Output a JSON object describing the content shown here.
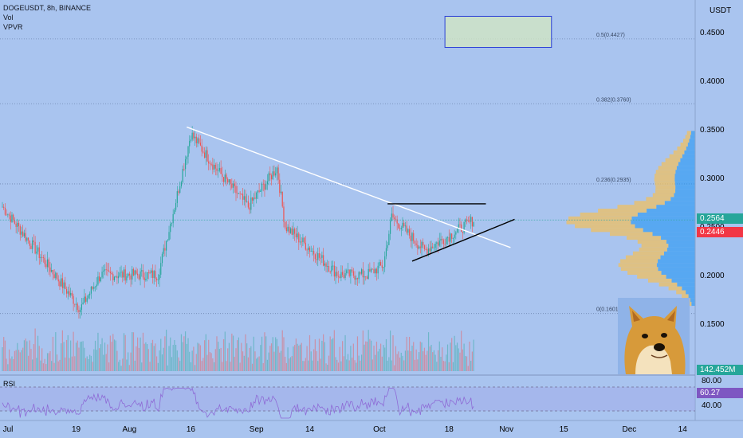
{
  "header": {
    "symbol_line": "DOGEUSDT, 8h, BINANCE",
    "indicators": [
      "Vol",
      "VPVR"
    ]
  },
  "price_axis": {
    "currency": "USDT",
    "ticks": [
      "0.4500",
      "0.4000",
      "0.3500",
      "0.3000",
      "0.2500",
      "0.2000",
      "0.1500"
    ],
    "tick_values": [
      0.45,
      0.4,
      0.35,
      0.3,
      0.25,
      0.2,
      0.15
    ],
    "current_price": "0.2564",
    "alt_price": "0.2446",
    "volume_label": "142.452M"
  },
  "time_axis": {
    "labels": [
      "Jul",
      "19",
      "Aug",
      "16",
      "Sep",
      "14",
      "Oct",
      "18",
      "Nov",
      "15",
      "Dec",
      "14"
    ]
  },
  "fib_levels": [
    {
      "label": "0.5(0.4427)",
      "value": 0.4427
    },
    {
      "label": "0.382(0.3760)",
      "value": 0.376
    },
    {
      "label": "0.236(0.2935)",
      "value": 0.2935
    },
    {
      "label": "0(0.1601)",
      "value": 0.1601
    }
  ],
  "rsi": {
    "label": "RSI",
    "ticks": [
      "80.00",
      "40.00"
    ],
    "value": "60.27"
  },
  "colors": {
    "background": "#a9c4ef",
    "up": "#26a69a",
    "down": "#ef5350",
    "current_price_box": "#26a69a",
    "alt_price_box": "#f23645",
    "volume_box": "#26a69a",
    "rsi_box": "#7e57c2",
    "trendline": "#ffffff",
    "triangle": "#000000",
    "vpvr_up": "#2196f3",
    "vpvr_down": "#f0c060",
    "target_box": "#d4e8c0",
    "target_border": "#2a3fd6"
  },
  "icons": {
    "mascot": "doge-icon"
  },
  "chart_data": {
    "type": "candlestick",
    "title": "DOGEUSDT, 8h, BINANCE",
    "ylim": [
      0.13,
      0.48
    ],
    "key_prices": [
      {
        "date": "Jul 1",
        "price": 0.27
      },
      {
        "date": "Jul 12",
        "price": 0.21
      },
      {
        "date": "Jul 20",
        "price": 0.165
      },
      {
        "date": "Jul 25",
        "price": 0.2
      },
      {
        "date": "Aug 8",
        "price": 0.2
      },
      {
        "date": "Aug 12",
        "price": 0.27
      },
      {
        "date": "Aug 16",
        "price": 0.345
      },
      {
        "date": "Aug 22",
        "price": 0.31
      },
      {
        "date": "Aug 30",
        "price": 0.27
      },
      {
        "date": "Sep 6",
        "price": 0.31
      },
      {
        "date": "Sep 8",
        "price": 0.25
      },
      {
        "date": "Sep 21",
        "price": 0.2
      },
      {
        "date": "Sep 28",
        "price": 0.2
      },
      {
        "date": "Oct 2",
        "price": 0.21
      },
      {
        "date": "Oct 4",
        "price": 0.26
      },
      {
        "date": "Oct 12",
        "price": 0.225
      },
      {
        "date": "Oct 18",
        "price": 0.24
      },
      {
        "date": "Oct 24",
        "price": 0.2564
      }
    ],
    "overlays": {
      "resistance_trendline": [
        {
          "date": "Aug 15",
          "price": 0.352
        },
        {
          "date": "Nov 2",
          "price": 0.228
        }
      ],
      "triangle_top": [
        {
          "date": "Oct 3",
          "price": 0.273
        },
        {
          "date": "Oct 27",
          "price": 0.273
        }
      ],
      "triangle_bottom": [
        {
          "date": "Oct 9",
          "price": 0.214
        },
        {
          "date": "Nov 3",
          "price": 0.257
        }
      ],
      "target_zone": {
        "price_low": 0.434,
        "price_high": 0.466,
        "date_start": "Oct 17",
        "date_end": "Nov 12"
      }
    }
  }
}
